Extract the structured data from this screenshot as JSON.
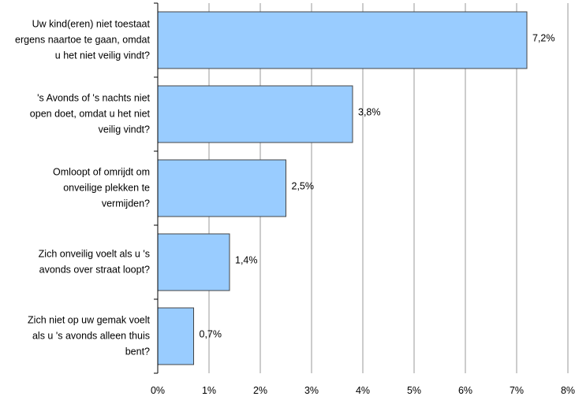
{
  "chart_data": {
    "type": "bar",
    "orientation": "horizontal",
    "categories": [
      [
        "Uw kind(eren) niet toestaat",
        "ergens naartoe te gaan, omdat",
        "u het niet veilig vindt?"
      ],
      [
        "'s Avonds of 's nachts niet",
        "open doet, omdat u het niet",
        "veilig vindt?"
      ],
      [
        "Omloopt of omrijdt om",
        "onveilige plekken te",
        "vermijden?"
      ],
      [
        "Zich onveilig voelt als u 's",
        "avonds over straat loopt?"
      ],
      [
        "Zich niet op uw gemak voelt",
        "als u 's avonds alleen thuis",
        "bent?"
      ]
    ],
    "values": [
      7.2,
      3.8,
      2.5,
      1.4,
      0.7
    ],
    "data_labels": [
      "7,2%",
      "3,8%",
      "2,5%",
      "1,4%",
      "0,7%"
    ],
    "xlim": [
      0,
      8
    ],
    "ticks": [
      0,
      1,
      2,
      3,
      4,
      5,
      6,
      7,
      8
    ],
    "tick_labels": [
      "0%",
      "1%",
      "2%",
      "3%",
      "4%",
      "5%",
      "6%",
      "7%",
      "8%"
    ],
    "grid": "vertical",
    "colors": {
      "bar_fill": "#99ccff",
      "bar_stroke": "#444444",
      "grid": "#999999",
      "axis": "#000000"
    }
  }
}
